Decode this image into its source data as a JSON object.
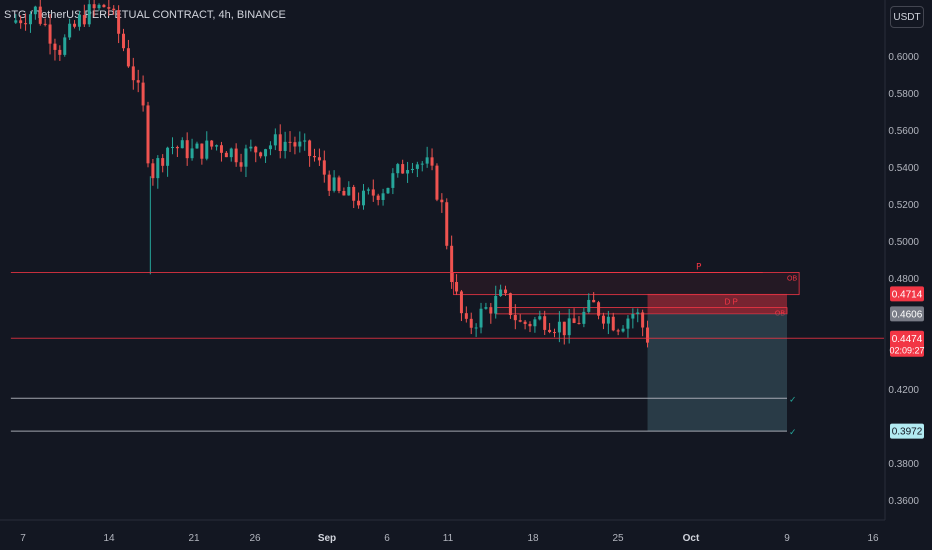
{
  "header": {
    "title": "STG / TetherUS PERPETUAL CONTRACT, 4h, BINANCE",
    "currency_label": "USDT"
  },
  "colors": {
    "background": "#131722",
    "up": "#26a69a",
    "down": "#ef5350",
    "ob_zone": "#f23645",
    "target_zone": "#3d5a66",
    "level_line": "#b2b5be",
    "resistance_line": "#f23645"
  },
  "chart_data": {
    "type": "candlestick",
    "ylim": [
      0.35,
      0.625
    ],
    "y_ticks": [
      "0.6000",
      "0.5800",
      "0.5600",
      "0.5400",
      "0.5200",
      "0.5000",
      "0.4800",
      "0.4200",
      "0.3800",
      "0.3600"
    ],
    "x_ticks": [
      "7",
      "14",
      "21",
      "26",
      "Sep",
      "6",
      "11",
      "18",
      "25",
      "Oct",
      "9",
      "16"
    ],
    "x_range": [
      "Aug 6",
      "Oct 17"
    ],
    "price_path": [
      {
        "date": "Aug 6",
        "price": 0.618
      },
      {
        "date": "Aug 8",
        "price": 0.625
      },
      {
        "date": "Aug 10",
        "price": 0.604
      },
      {
        "date": "Aug 12",
        "price": 0.622
      },
      {
        "date": "Aug 14",
        "price": 0.628
      },
      {
        "date": "Aug 15",
        "price": 0.61
      },
      {
        "date": "Aug 16",
        "price": 0.592
      },
      {
        "date": "Aug 17",
        "price": 0.568
      },
      {
        "date": "Aug 17.5",
        "price": 0.535
      },
      {
        "date": "Aug 19",
        "price": 0.552
      },
      {
        "date": "Aug 21",
        "price": 0.548
      },
      {
        "date": "Aug 23",
        "price": 0.552
      },
      {
        "date": "Aug 25",
        "price": 0.546
      },
      {
        "date": "Aug 27",
        "price": 0.552
      },
      {
        "date": "Aug 29",
        "price": 0.554
      },
      {
        "date": "Aug 31",
        "price": 0.545
      },
      {
        "date": "Sep 2",
        "price": 0.525
      },
      {
        "date": "Sep 4",
        "price": 0.522
      },
      {
        "date": "Sep 6",
        "price": 0.53
      },
      {
        "date": "Sep 8",
        "price": 0.545
      },
      {
        "date": "Sep 9.5",
        "price": 0.54
      },
      {
        "date": "Sep 10.5",
        "price": 0.52
      },
      {
        "date": "Sep 11.5",
        "price": 0.475
      },
      {
        "date": "Sep 12.5",
        "price": 0.452
      },
      {
        "date": "Sep 14",
        "price": 0.462
      },
      {
        "date": "Sep 15.5",
        "price": 0.47
      },
      {
        "date": "Sep 17",
        "price": 0.455
      },
      {
        "date": "Sep 19",
        "price": 0.458
      },
      {
        "date": "Sep 21",
        "price": 0.452
      },
      {
        "date": "Sep 23",
        "price": 0.465
      },
      {
        "date": "Sep 25",
        "price": 0.455
      },
      {
        "date": "Sep 26.5",
        "price": 0.462
      },
      {
        "date": "Sep 27.5",
        "price": 0.448
      }
    ],
    "candle_count": 130,
    "level_lines": [
      {
        "price": 0.483,
        "x_start": "Aug 6",
        "x_end": "Oct 7",
        "color": "#f23645",
        "label": "P"
      },
      {
        "price": 0.4474,
        "x_start": "Aug 6",
        "x_end": "Oct 17",
        "color": "#f23645"
      },
      {
        "price": 0.415,
        "x_start": "Aug 6",
        "x_end": "Oct 9",
        "color": "#b2b5be",
        "label": "✓"
      },
      {
        "price": 0.3972,
        "x_start": "Aug 6",
        "x_end": "Oct 9",
        "color": "#b2b5be",
        "label": "✓"
      }
    ],
    "zones": [
      {
        "label": "OB",
        "x_start": "Sep 11.5",
        "x_end": "Oct 10",
        "y_top": 0.483,
        "y_bottom": 0.471,
        "color": "#f23645"
      },
      {
        "label": "OB",
        "x_start": "Sep 15",
        "x_end": "Oct 9",
        "y_top": 0.464,
        "y_bottom": 0.4606,
        "color": "#f23645"
      },
      {
        "label": "",
        "x_start": "Sep 27.5",
        "x_end": "Oct 9",
        "y_top": 0.4714,
        "y_bottom": 0.4606,
        "color": "#f23645"
      },
      {
        "label": "",
        "x_start": "Sep 27.5",
        "x_end": "Oct 9",
        "y_top": 0.4606,
        "y_bottom": 0.3972,
        "color": "#3d5a66"
      }
    ],
    "annotations": [
      {
        "text": "D P",
        "date": "Oct 5",
        "price": 0.464
      }
    ],
    "price_tags": [
      {
        "value": "0.4714",
        "price": 0.4714,
        "bg": "#f23645",
        "fg": "#ffffff"
      },
      {
        "value": "0.4606",
        "price": 0.4606,
        "bg": "#787b86",
        "fg": "#ffffff"
      },
      {
        "value": "0.4474",
        "sub": "02:09:27",
        "price": 0.4474,
        "bg": "#f23645",
        "fg": "#ffffff"
      },
      {
        "value": "0.3972",
        "price": 0.3972,
        "bg": "#b2ebf2",
        "fg": "#131722"
      }
    ]
  }
}
